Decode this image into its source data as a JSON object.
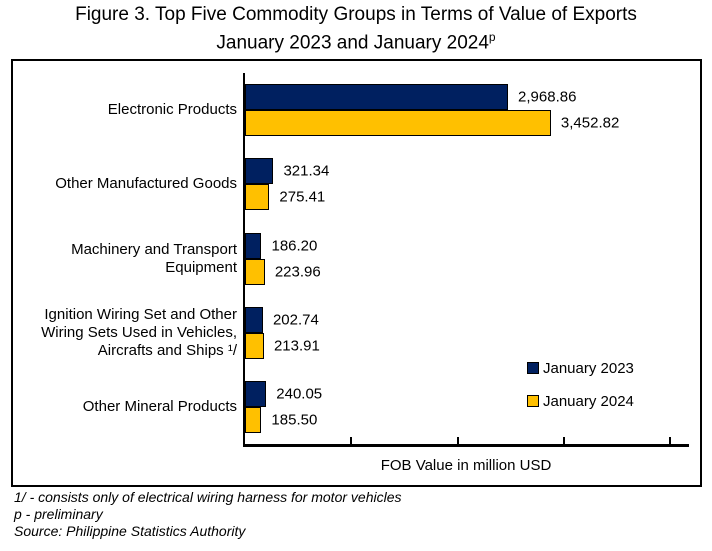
{
  "title": {
    "line1": "Figure 3. Top Five Commodity Groups in Terms of Value of Exports",
    "line2_text": "January 2023 and January 2024",
    "line2_sup": "p"
  },
  "chart_data": {
    "type": "bar",
    "orientation": "horizontal",
    "categories": [
      "Electronic Products",
      "Other Manufactured Goods",
      "Machinery and Transport Equipment",
      "Ignition Wiring Set and Other Wiring Sets Used in Vehicles, Aircrafts and Ships 1/",
      "Other Mineral Products"
    ],
    "category_lines": [
      [
        "Electronic Products"
      ],
      [
        "Other Manufactured Goods"
      ],
      [
        "Machinery and Transport",
        "Equipment"
      ],
      [
        "Ignition Wiring Set and Other",
        "Wiring Sets Used in Vehicles,",
        "Aircrafts and Ships ¹/"
      ],
      [
        "Other Mineral Products"
      ]
    ],
    "series": [
      {
        "name": "January 2023",
        "color": "#002060",
        "values": [
          2968.86,
          321.34,
          186.2,
          202.74,
          240.05
        ],
        "labels": [
          "2,968.86",
          "321.34",
          "186.20",
          "202.74",
          "240.05"
        ]
      },
      {
        "name": "January 2024",
        "color": "#FFC000",
        "values": [
          3452.82,
          275.41,
          223.96,
          213.91,
          185.5
        ],
        "labels": [
          "3,452.82",
          "275.41",
          "223.96",
          "213.91",
          "185.50"
        ]
      }
    ],
    "xlabel": "FOB Value in million USD",
    "xlim": [
      0,
      5000
    ],
    "ticks": [
      1200,
      2400,
      3600,
      4800
    ],
    "tick_labels_visible": false,
    "grid": false,
    "legend_position": "inside-right"
  },
  "footnotes": [
    "1/ - consists only of electrical wiring harness for motor vehicles",
    "p - preliminary",
    "Source: Philippine Statistics Authority"
  ]
}
